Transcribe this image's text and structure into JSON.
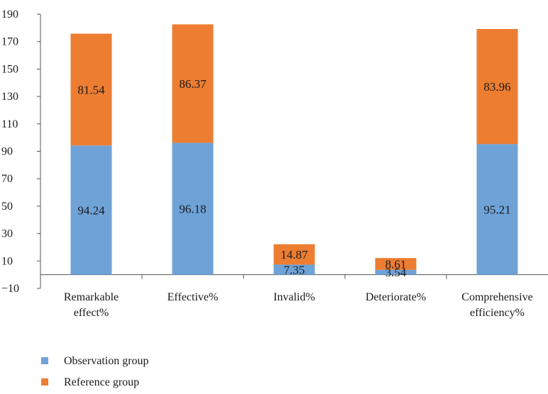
{
  "chart_data": {
    "type": "bar",
    "stacked": true,
    "categories": [
      [
        "Remarkable",
        "effect%"
      ],
      [
        "Effective%"
      ],
      [
        "Invalid%"
      ],
      [
        "Deteriorate%"
      ],
      [
        "Comprehensive",
        "efficiency%"
      ]
    ],
    "series": [
      {
        "name": "Observation group",
        "color": "#6fa3d8",
        "values": [
          94.24,
          96.18,
          7.35,
          3.54,
          95.21
        ],
        "labels": [
          "94.24",
          "96.18",
          "7.35",
          "3.54",
          "95.21"
        ]
      },
      {
        "name": "Reference group",
        "color": "#ed7d31",
        "values": [
          81.54,
          86.37,
          14.87,
          8.61,
          83.96
        ],
        "labels": [
          "81.54",
          "86.37",
          "14.87",
          "8.61",
          "83.96"
        ]
      }
    ],
    "ylim": [
      -10,
      190
    ],
    "yticks": [
      -10,
      10,
      30,
      50,
      70,
      90,
      110,
      130,
      150,
      170,
      190
    ],
    "ytick_labels": [
      "−10",
      "10",
      "30",
      "50",
      "70",
      "90",
      "110",
      "130",
      "150",
      "170",
      "190"
    ],
    "legend_position": "bottom-left",
    "grid": false
  }
}
